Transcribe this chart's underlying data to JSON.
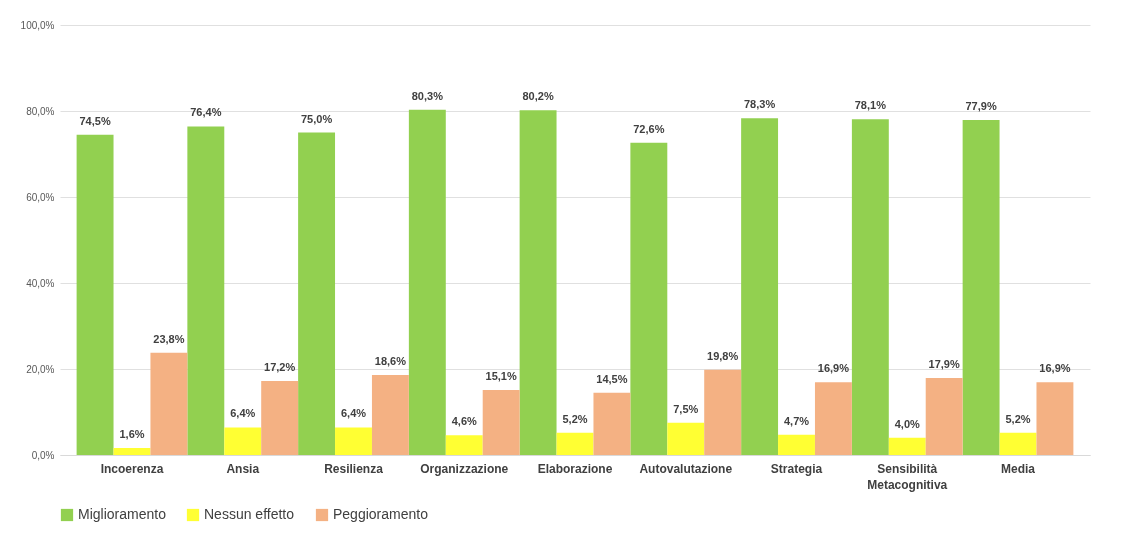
{
  "chart_data": {
    "type": "bar",
    "categories": [
      "Incoerenza",
      "Ansia",
      "Resilienza",
      "Organizzazione",
      "Elaborazione",
      "Autovalutazione",
      "Strategia",
      "Sensibilità Metacognitiva",
      "Media"
    ],
    "series": [
      {
        "name": "Miglioramento",
        "color": "#92d050",
        "values": [
          74.5,
          76.4,
          75.0,
          80.3,
          80.2,
          72.6,
          78.3,
          78.1,
          77.9
        ],
        "value_labels": [
          "74,5%",
          "76,4%",
          "75,0%",
          "80,3%",
          "80,2%",
          "72,6%",
          "78,3%",
          "78,1%",
          "77,9%"
        ]
      },
      {
        "name": "Nessun effetto",
        "color": "#ffff33",
        "values": [
          1.6,
          6.4,
          6.4,
          4.6,
          5.2,
          7.5,
          4.7,
          4.0,
          5.2
        ],
        "value_labels": [
          "1,6%",
          "6,4%",
          "6,4%",
          "4,6%",
          "5,2%",
          "7,5%",
          "4,7%",
          "4,0%",
          "5,2%"
        ]
      },
      {
        "name": "Peggioramento",
        "color": "#f4b183",
        "values": [
          23.8,
          17.2,
          18.6,
          15.1,
          14.5,
          19.8,
          16.9,
          17.9,
          16.9
        ],
        "value_labels": [
          "23,8%",
          "17,2%",
          "18,6%",
          "15,1%",
          "14,5%",
          "19,8%",
          "16,9%",
          "17,9%",
          "16,9%"
        ]
      }
    ],
    "ylim": [
      0,
      100
    ],
    "yticks": [
      {
        "value": 0,
        "label": "0,0%"
      },
      {
        "value": 20,
        "label": "20,0%"
      },
      {
        "value": 40,
        "label": "40,0%"
      },
      {
        "value": 60,
        "label": "60,0%"
      },
      {
        "value": 80,
        "label": "80,0%"
      },
      {
        "value": 100,
        "label": "100,0%"
      }
    ],
    "grid": "y",
    "legend": "bottom"
  }
}
